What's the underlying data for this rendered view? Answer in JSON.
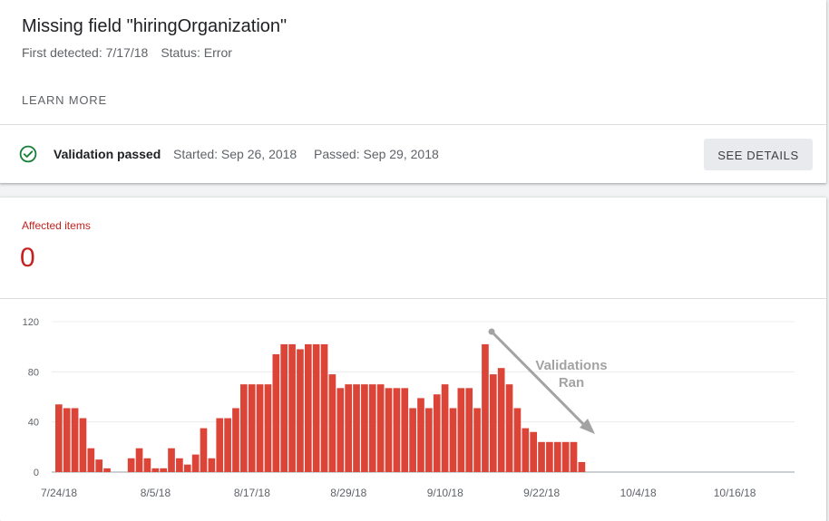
{
  "issue": {
    "title": "Missing field \"hiringOrganization\"",
    "first_detected": "First detected: 7/17/18",
    "status": "Status: Error",
    "learn_more": "LEARN MORE"
  },
  "validation": {
    "label": "Validation passed",
    "started": "Started: Sep 26, 2018",
    "passed": "Passed: Sep 29, 2018",
    "see_details": "SEE DETAILS",
    "icon": "check-circle-icon",
    "icon_color": "#188038"
  },
  "affected": {
    "label": "Affected items",
    "count": "0",
    "color": "#c5221f"
  },
  "chart_data": {
    "type": "bar",
    "title": "",
    "xlabel": "",
    "ylabel": "",
    "ylim": [
      0,
      120
    ],
    "yticks": [
      "0",
      "40",
      "80",
      "120"
    ],
    "xticks": [
      "7/24/18",
      "8/5/18",
      "8/17/18",
      "8/29/18",
      "9/10/18",
      "9/22/18",
      "10/4/18",
      "10/16/18"
    ],
    "x_start": "7/24/18",
    "bar_color": "#db4437",
    "grid": true,
    "values": [
      54,
      51,
      51,
      43,
      19,
      10,
      3,
      0,
      0,
      11,
      19,
      11,
      3,
      3,
      19,
      11,
      6,
      14,
      35,
      11,
      43,
      43,
      51,
      70,
      70,
      70,
      70,
      94,
      102,
      102,
      98,
      102,
      102,
      102,
      78,
      67,
      70,
      70,
      70,
      70,
      70,
      67,
      67,
      67,
      51,
      59,
      51,
      62,
      70,
      51,
      67,
      67,
      51,
      102,
      78,
      83,
      70,
      51,
      35,
      32,
      24,
      24,
      24,
      24,
      24,
      8
    ],
    "annotation": {
      "lines": [
        "Validations",
        "Ran"
      ],
      "color": "#a3a3a3"
    }
  }
}
